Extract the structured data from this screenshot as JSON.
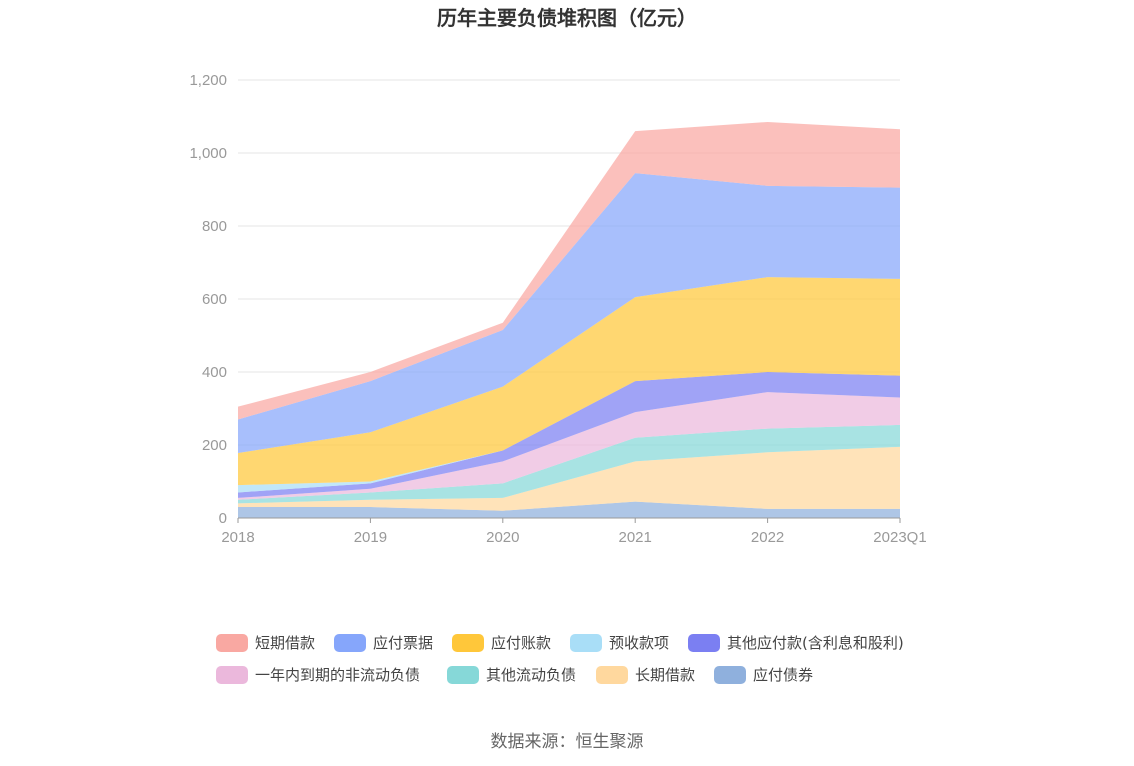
{
  "chart_data": {
    "type": "area",
    "stacked": true,
    "title": "历年主要负债堆积图（亿元）",
    "source": "数据来源：恒生聚源",
    "x": [
      "2018",
      "2019",
      "2020",
      "2021",
      "2022",
      "2023Q1"
    ],
    "y_ticks": [
      "0",
      "200",
      "400",
      "600",
      "800",
      "1,000",
      "1,200"
    ],
    "ylim": [
      0,
      1200
    ],
    "grid": true,
    "legend_position": "bottom",
    "series": [
      {
        "name": "应付债券",
        "color": "#8fb0dd",
        "values": [
          30,
          30,
          20,
          45,
          25,
          25
        ]
      },
      {
        "name": "长期借款",
        "color": "#ffd89e",
        "values": [
          10,
          20,
          35,
          110,
          155,
          170
        ]
      },
      {
        "name": "其他流动负债",
        "color": "#86d8d8",
        "values": [
          10,
          20,
          40,
          65,
          65,
          60
        ]
      },
      {
        "name": "一年内到期的非流动负债",
        "color": "#ebb8dc",
        "values": [
          5,
          10,
          60,
          70,
          100,
          75
        ]
      },
      {
        "name": "其他应付款(含利息和股利)",
        "color": "#7b7ff2",
        "values": [
          15,
          15,
          30,
          85,
          55,
          60
        ]
      },
      {
        "name": "预收款项",
        "color": "#a9def7",
        "values": [
          20,
          5,
          0,
          0,
          0,
          0
        ]
      },
      {
        "name": "应付账款",
        "color": "#ffc73a",
        "values": [
          88,
          135,
          175,
          230,
          260,
          265
        ]
      },
      {
        "name": "应付票据",
        "color": "#86a6fb",
        "values": [
          92,
          140,
          155,
          340,
          250,
          250
        ]
      },
      {
        "name": "短期借款",
        "color": "#f9a8a2",
        "values": [
          35,
          25,
          20,
          115,
          175,
          160
        ]
      }
    ],
    "legend_order": [
      "短期借款",
      "应付票据",
      "应付账款",
      "预收款项",
      "其他应付款(含利息和股利)",
      "一年内到期的非流动负债",
      "其他流动负债",
      "长期借款",
      "应付债券"
    ]
  }
}
